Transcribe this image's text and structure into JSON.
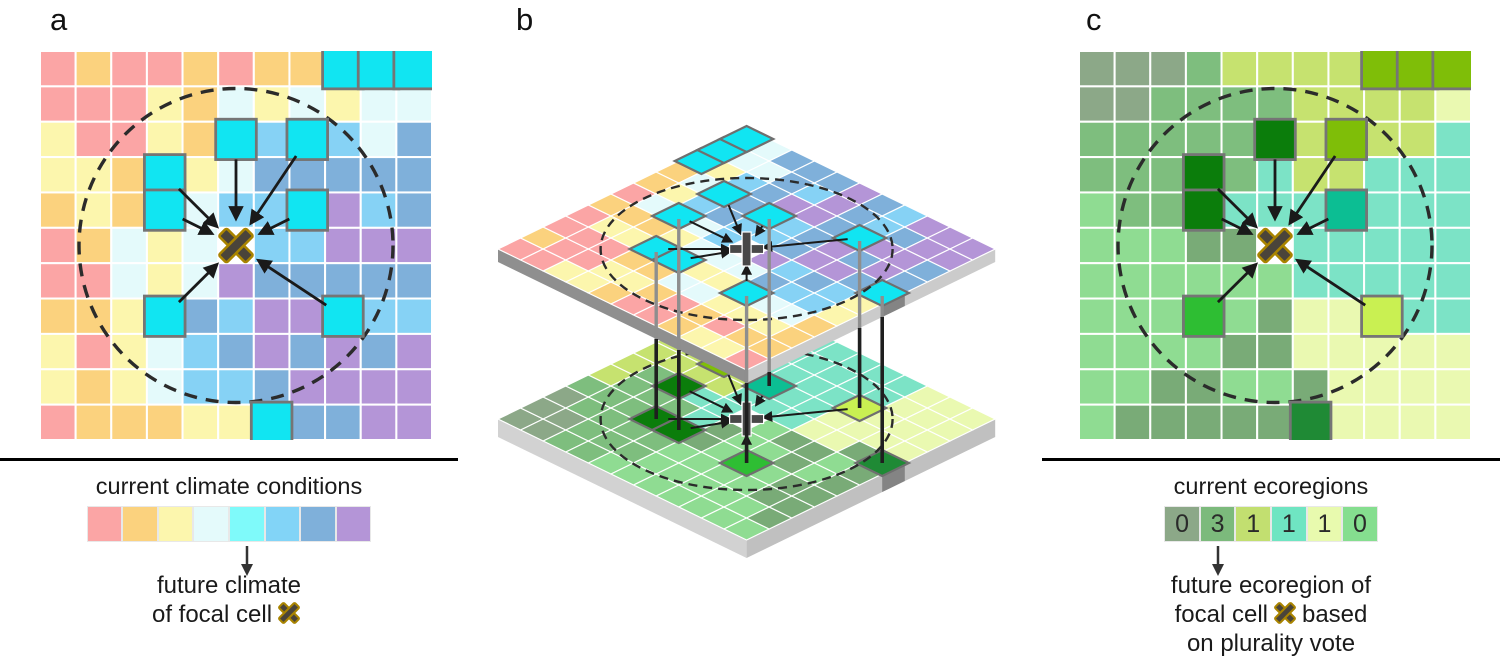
{
  "panels": [
    {
      "label": "a",
      "name": "current-climate-grid"
    },
    {
      "label": "b",
      "name": "stacked-iso-layers"
    },
    {
      "label": "c",
      "name": "current-ecoregions-grid"
    }
  ],
  "palette_climate": {
    "R": "#FBA5A5",
    "O": "#FBD27E",
    "Y": "#FCF6AD",
    "W": "#E4FAFB",
    "C": "#11E5F2",
    "S": "#86D2F5",
    "B": "#7FB0DA",
    "P": "#B495D7",
    "F": "#FFFFFF"
  },
  "palette_eco": {
    "g": "#8CA888",
    "m": "#7EBE7E",
    "n": "#79AB77",
    "l": "#C6E26F",
    "p": "#EAF9B1",
    "t": "#7CE3C6",
    "e": "#8FDC92",
    "D": "#0B7D0B",
    "Y": "#7FBE08",
    "E": "#0CBE93",
    "G": "#2EBE33",
    "L": "#C9F052",
    "F": "#1F8A35",
    "W": "#FFFFFF"
  },
  "climate_grid": [
    "R O R R O R O O C C C",
    "R R R Y O W Y W Y W W",
    "Y R R Y O C S C S W B",
    "Y Y O C Y W B B B B B",
    "O Y O C W S S C P S B",
    "R O W Y W F S S P P P",
    "R R W Y W P B B B B B",
    "O O Y C B S P P C S S",
    "Y R Y W S B P B P B P",
    "Y O Y W S S B P P P P",
    "R O O O Y Y C B B P P"
  ],
  "eco_grid": [
    "g g g m l l l l Y Y Y",
    "g g m m m m l l l l p",
    "m m m m m D l Y l l t",
    "m m m D m t l l t t t",
    "e m m D t t t E t t t",
    "e e e n n W t t t t t",
    "e e e e e e t t t t t",
    "e e e G e n p p L t t",
    "e e e e n n p p p p p",
    "e e n n e e n p p p p",
    "e n n n n n F p p p p"
  ],
  "analog_cells": [
    [
      1,
      9
    ],
    [
      1,
      10
    ],
    [
      1,
      11
    ],
    [
      3,
      6
    ],
    [
      3,
      8
    ],
    [
      4,
      4
    ],
    [
      5,
      4
    ],
    [
      5,
      8
    ],
    [
      8,
      4
    ],
    [
      8,
      9
    ],
    [
      11,
      7
    ]
  ],
  "arrow_cells": [
    [
      3,
      6
    ],
    [
      3,
      8
    ],
    [
      4,
      4
    ],
    [
      5,
      4
    ],
    [
      5,
      8
    ],
    [
      8,
      4
    ],
    [
      8,
      9
    ]
  ],
  "line_cells": [
    [
      3,
      6
    ],
    [
      4,
      4
    ],
    [
      5,
      4
    ],
    [
      5,
      8
    ],
    [
      8,
      4
    ],
    [
      8,
      9
    ],
    [
      11,
      7
    ]
  ],
  "focal_cell": [
    6,
    6
  ],
  "legend_climate": {
    "title": "current climate conditions",
    "swatches": [
      "#FBA5A5",
      "#FBD27E",
      "#FCF6AD",
      "#E4FAFB",
      "#7FFAFA",
      "#82D4F7",
      "#7FB0DA",
      "#B495D7"
    ],
    "arrow_under_index": 4,
    "caption_line1": "future climate",
    "caption_line2_pre": "of focal cell"
  },
  "legend_eco": {
    "title": "current ecoregions",
    "swatches": [
      {
        "color": "#8CA888",
        "count": "0"
      },
      {
        "color": "#7CBA7C",
        "count": "3"
      },
      {
        "color": "#C2DF70",
        "count": "1"
      },
      {
        "color": "#6FE5C2",
        "count": "1"
      },
      {
        "color": "#E8FAAE",
        "count": "1"
      },
      {
        "color": "#85DE8F",
        "count": "0"
      }
    ],
    "arrow_under_index": 1,
    "caption_line1": "future ecoregion of",
    "caption_line2_pre": "focal cell",
    "caption_line2_post": "based",
    "caption_line3": "on plurality vote"
  },
  "marker_colors": {
    "x_fill": "#4A443A",
    "x_stroke": "#A98400",
    "plus_fill": "#484848",
    "arrow_color": "#1a1a1a",
    "circle_color": "#2b2b2b"
  }
}
